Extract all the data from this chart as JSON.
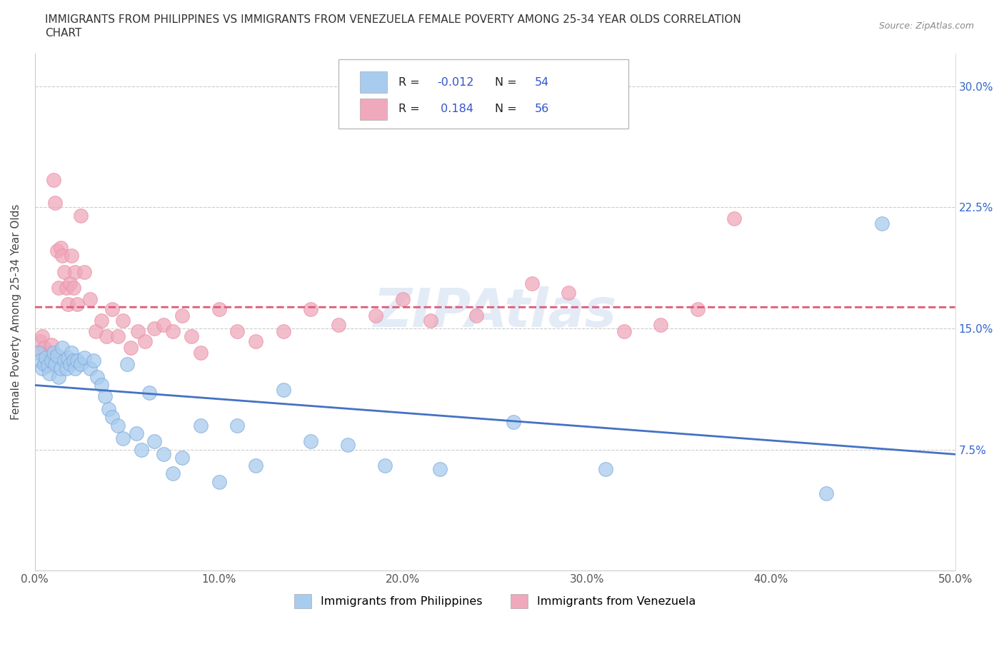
{
  "title_line1": "IMMIGRANTS FROM PHILIPPINES VS IMMIGRANTS FROM VENEZUELA FEMALE POVERTY AMONG 25-34 YEAR OLDS CORRELATION",
  "title_line2": "CHART",
  "source_text": "Source: ZipAtlas.com",
  "ylabel": "Female Poverty Among 25-34 Year Olds",
  "xlim": [
    0.0,
    0.5
  ],
  "ylim": [
    0.0,
    0.32
  ],
  "xticks": [
    0.0,
    0.1,
    0.2,
    0.3,
    0.4,
    0.5
  ],
  "xticklabels": [
    "0.0%",
    "10.0%",
    "20.0%",
    "30.0%",
    "40.0%",
    "50.0%"
  ],
  "yticks": [
    0.0,
    0.075,
    0.15,
    0.225,
    0.3
  ],
  "yticklabels": [
    "",
    "7.5%",
    "15.0%",
    "22.5%",
    "30.0%"
  ],
  "color_philippines": "#A8CCEE",
  "color_venezuela": "#F0A8BC",
  "trendline_philippines": "#4472C4",
  "trendline_venezuela": "#E05878",
  "R_philippines": -0.012,
  "N_philippines": 54,
  "R_venezuela": 0.184,
  "N_venezuela": 56,
  "legend_label_philippines": "Immigrants from Philippines",
  "legend_label_venezuela": "Immigrants from Venezuela",
  "philippines_x": [
    0.002,
    0.003,
    0.004,
    0.005,
    0.006,
    0.007,
    0.008,
    0.009,
    0.01,
    0.011,
    0.012,
    0.013,
    0.014,
    0.015,
    0.016,
    0.017,
    0.018,
    0.019,
    0.02,
    0.021,
    0.022,
    0.023,
    0.025,
    0.027,
    0.03,
    0.032,
    0.034,
    0.036,
    0.038,
    0.04,
    0.042,
    0.045,
    0.048,
    0.05,
    0.055,
    0.058,
    0.062,
    0.065,
    0.07,
    0.075,
    0.08,
    0.09,
    0.1,
    0.11,
    0.12,
    0.135,
    0.15,
    0.17,
    0.19,
    0.22,
    0.26,
    0.31,
    0.43,
    0.46
  ],
  "philippines_y": [
    0.135,
    0.13,
    0.125,
    0.128,
    0.132,
    0.127,
    0.122,
    0.13,
    0.135,
    0.128,
    0.133,
    0.12,
    0.125,
    0.138,
    0.13,
    0.125,
    0.132,
    0.128,
    0.135,
    0.13,
    0.125,
    0.13,
    0.128,
    0.132,
    0.125,
    0.13,
    0.12,
    0.115,
    0.108,
    0.1,
    0.095,
    0.09,
    0.082,
    0.128,
    0.085,
    0.075,
    0.11,
    0.08,
    0.072,
    0.06,
    0.07,
    0.09,
    0.055,
    0.09,
    0.065,
    0.112,
    0.08,
    0.078,
    0.065,
    0.063,
    0.092,
    0.063,
    0.048,
    0.215
  ],
  "venezuela_x": [
    0.002,
    0.003,
    0.004,
    0.005,
    0.006,
    0.007,
    0.008,
    0.009,
    0.01,
    0.011,
    0.012,
    0.013,
    0.014,
    0.015,
    0.016,
    0.017,
    0.018,
    0.019,
    0.02,
    0.021,
    0.022,
    0.023,
    0.025,
    0.027,
    0.03,
    0.033,
    0.036,
    0.039,
    0.042,
    0.045,
    0.048,
    0.052,
    0.056,
    0.06,
    0.065,
    0.07,
    0.075,
    0.08,
    0.085,
    0.09,
    0.1,
    0.11,
    0.12,
    0.135,
    0.15,
    0.165,
    0.185,
    0.2,
    0.215,
    0.24,
    0.27,
    0.29,
    0.32,
    0.34,
    0.36,
    0.38
  ],
  "venezuela_y": [
    0.135,
    0.142,
    0.145,
    0.138,
    0.13,
    0.128,
    0.135,
    0.14,
    0.242,
    0.228,
    0.198,
    0.175,
    0.2,
    0.195,
    0.185,
    0.175,
    0.165,
    0.178,
    0.195,
    0.175,
    0.185,
    0.165,
    0.22,
    0.185,
    0.168,
    0.148,
    0.155,
    0.145,
    0.162,
    0.145,
    0.155,
    0.138,
    0.148,
    0.142,
    0.15,
    0.152,
    0.148,
    0.158,
    0.145,
    0.135,
    0.162,
    0.148,
    0.142,
    0.148,
    0.162,
    0.152,
    0.158,
    0.168,
    0.155,
    0.158,
    0.178,
    0.172,
    0.148,
    0.152,
    0.162,
    0.218
  ]
}
